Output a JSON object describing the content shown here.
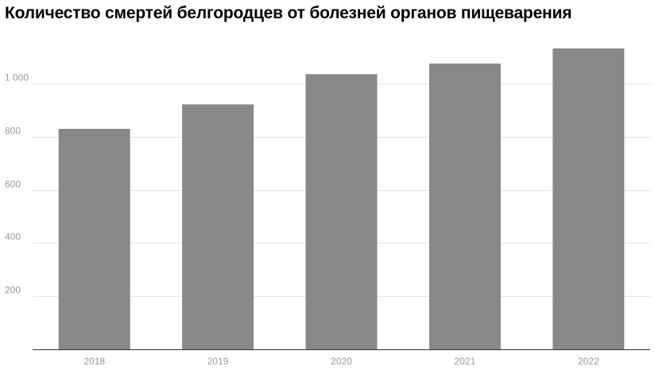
{
  "chart_data": {
    "type": "bar",
    "title": "Количество смертей белгородцев от болезней органов пищеварения",
    "xlabel": "",
    "ylabel": "",
    "categories": [
      "2018",
      "2019",
      "2020",
      "2021",
      "2022"
    ],
    "values": [
      830,
      922,
      1036,
      1076,
      1133
    ],
    "ylim": [
      0,
      1200
    ],
    "yticks": [
      200,
      400,
      600,
      800,
      1000
    ],
    "ytick_labels": [
      "200",
      "400",
      "600",
      "800",
      "1 000"
    ],
    "grid": true,
    "legend": "none",
    "colors": {
      "bar": "#888888",
      "grid": "#e4e4e4",
      "axis": "#333333",
      "tick_text": "#999999",
      "title_text": "#000000"
    }
  }
}
